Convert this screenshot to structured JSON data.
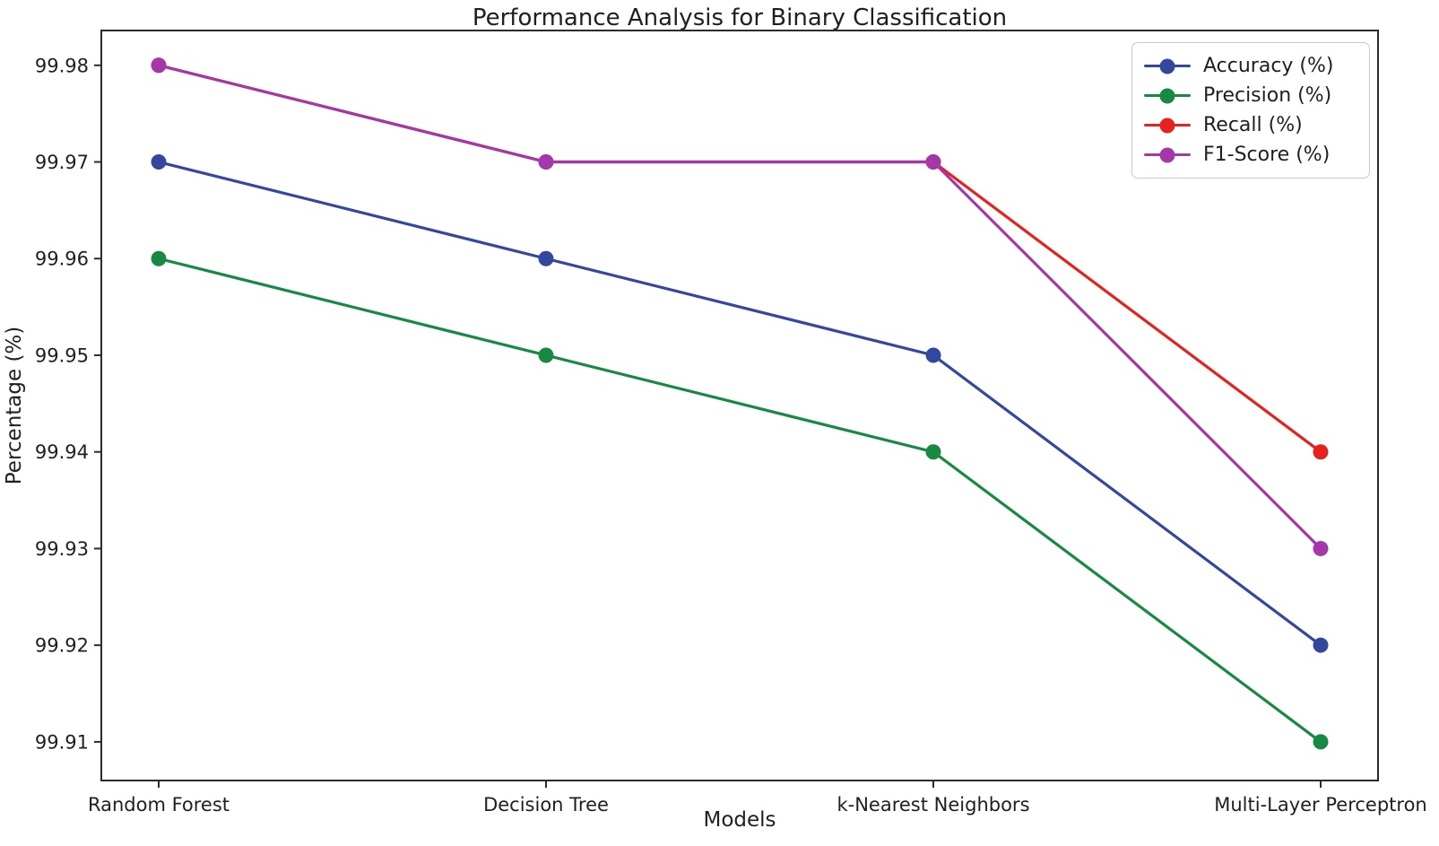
{
  "chart_data": {
    "type": "line",
    "title": "Performance Analysis for Binary Classification",
    "xlabel": "Models",
    "ylabel": "Percentage (%)",
    "categories": [
      "Random Forest",
      "Decision Tree",
      "k-Nearest Neighbors",
      "Multi-Layer Perceptron"
    ],
    "series": [
      {
        "name": "Accuracy (%)",
        "color": "#34479e",
        "values": [
          99.97,
          99.96,
          99.95,
          99.92
        ]
      },
      {
        "name": "Precision (%)",
        "color": "#178a42",
        "values": [
          99.96,
          99.95,
          99.94,
          99.91
        ]
      },
      {
        "name": "Recall (%)",
        "color": "#e7211d",
        "values": [
          99.98,
          99.97,
          99.97,
          99.94
        ]
      },
      {
        "name": "F1-Score (%)",
        "color": "#a637ab",
        "values": [
          99.98,
          99.97,
          99.97,
          99.93
        ]
      }
    ],
    "yticks": [
      99.91,
      99.92,
      99.93,
      99.94,
      99.95,
      99.96,
      99.97,
      99.98
    ],
    "ytick_format_decimals": 2,
    "ylim": [
      99.906,
      99.9836
    ],
    "grid": false,
    "legend_position": "upper right",
    "marker": "circle"
  },
  "colors": {
    "axis": "#2b2b2b",
    "text": "#1f1f1f",
    "legend_border": "#c9c9c9",
    "background": "#ffffff"
  }
}
